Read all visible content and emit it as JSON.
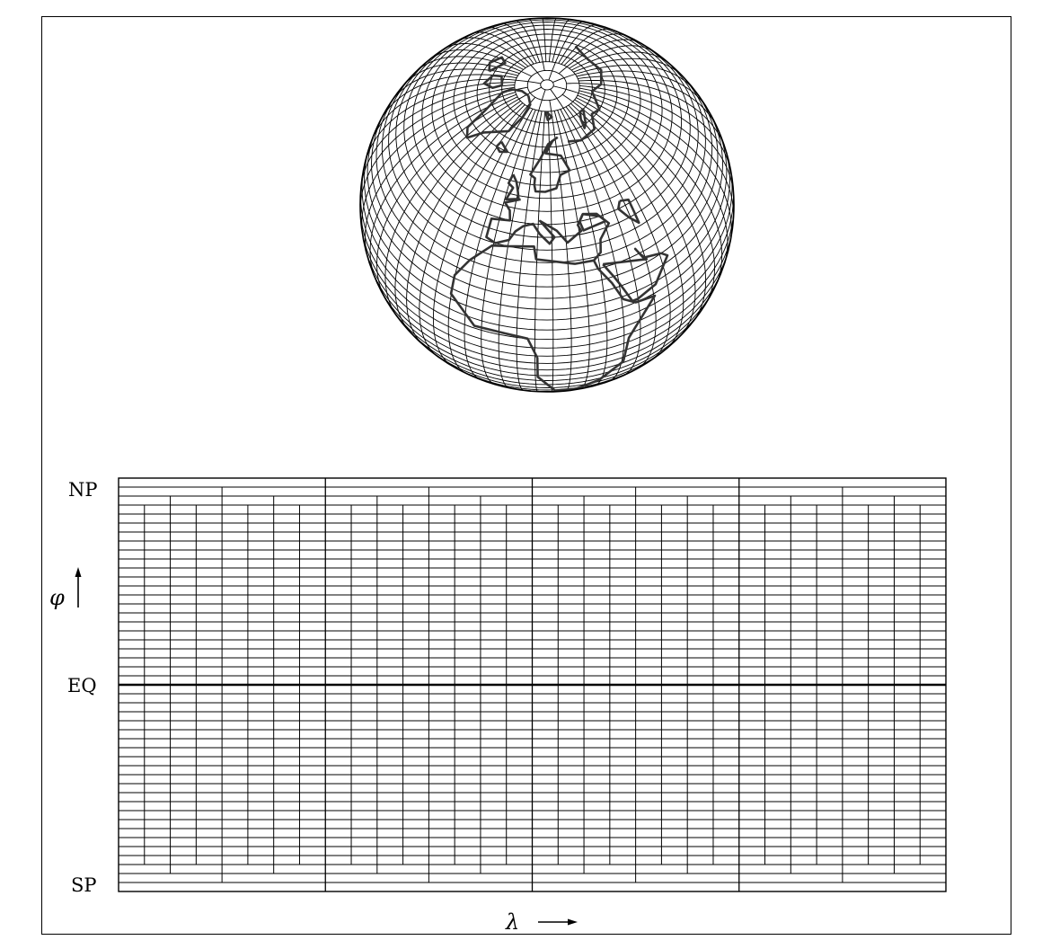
{
  "diagram": {
    "labels": {
      "north_pole": "NP",
      "equator": "EQ",
      "south_pole": "SP",
      "latitude_symbol": "φ",
      "longitude_symbol": "λ"
    },
    "globe": {
      "description_visible": false,
      "grid_color": "#000000",
      "coastline_color": "#333333"
    },
    "grid": {
      "line_color": "#000000",
      "equator_line_color": "#000000"
    }
  }
}
